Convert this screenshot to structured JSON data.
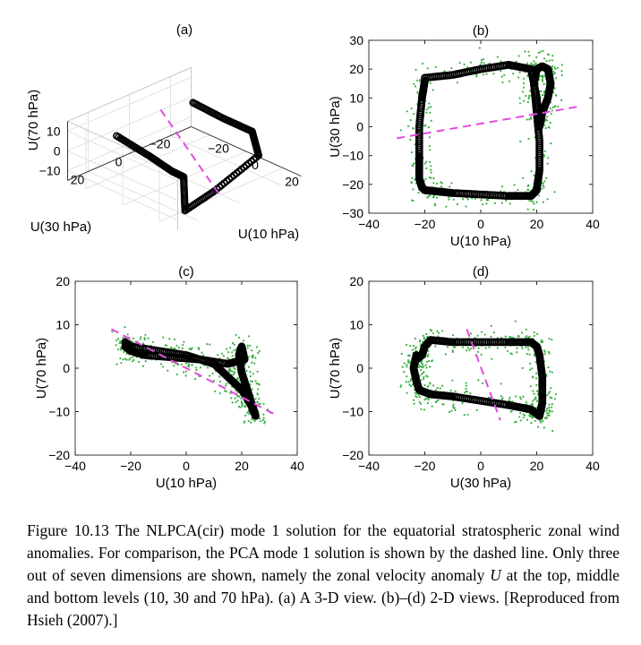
{
  "chart_data": [
    {
      "panel": "(a)",
      "type": "scatter",
      "projection": "3d",
      "xlabel": "U(10 hPa)",
      "ylabel": "U(30 hPa)",
      "zlabel": "U(70 hPa)",
      "xticks": [
        "−20",
        "0",
        "20"
      ],
      "yticks": [
        "−20",
        "0",
        "20"
      ],
      "zticks": [
        "−10",
        "0",
        "10"
      ],
      "xlim": [
        -30,
        30
      ],
      "ylim": [
        -30,
        30
      ],
      "zlim": [
        -15,
        15
      ],
      "grid": true,
      "series": [
        {
          "kind": "curve",
          "x": [
            -20,
            -5,
            10,
            18,
            22,
            25,
            22,
            18,
            0,
            -20
          ],
          "y": [
            -22,
            -23,
            -24,
            -20,
            5,
            22,
            20,
            22,
            17,
            16
          ],
          "z": [
            5,
            3,
            2,
            -5,
            -10,
            -11,
            4,
            6,
            4,
            6
          ]
        },
        {
          "kind": "dashed",
          "x": [
            -22,
            26
          ],
          "y": [
            -8,
            6
          ],
          "z": [
            7,
            -10
          ]
        }
      ]
    },
    {
      "panel": "(b)",
      "type": "scatter",
      "xlabel": "U(10 hPa)",
      "ylabel": "U(30 hPa)",
      "xlim": [
        -40,
        40
      ],
      "ylim": [
        -30,
        30
      ],
      "xticks": [
        "−40",
        "−20",
        "0",
        "20",
        "40"
      ],
      "yticks": [
        "−30",
        "−20",
        "−10",
        "0",
        "10",
        "20",
        "30"
      ],
      "series": [
        {
          "kind": "curve",
          "x": [
            -20,
            -21,
            -22,
            -22,
            -22,
            -21,
            -20,
            -15,
            -10,
            0,
            10,
            18,
            20,
            21,
            21,
            20,
            19,
            20,
            22,
            24,
            25,
            24,
            22,
            21,
            20,
            18,
            10,
            0,
            -10,
            -20
          ],
          "y": [
            16,
            10,
            0,
            -10,
            -18,
            -21,
            -22,
            -22.5,
            -23,
            -23.5,
            -24,
            -24,
            -22,
            -15,
            -5,
            5,
            15,
            20,
            21,
            20,
            15,
            10,
            5,
            0,
            10,
            20,
            21.5,
            20,
            18,
            17
          ]
        },
        {
          "kind": "dashed",
          "x": [
            -30,
            35
          ],
          "y": [
            -4,
            7
          ]
        }
      ]
    },
    {
      "panel": "(c)",
      "type": "scatter",
      "xlabel": "U(10 hPa)",
      "ylabel": "U(70 hPa)",
      "xlim": [
        -40,
        40
      ],
      "ylim": [
        -20,
        20
      ],
      "xticks": [
        "−40",
        "−20",
        "0",
        "20",
        "40"
      ],
      "yticks": [
        "−20",
        "−10",
        "0",
        "10",
        "20"
      ],
      "series": [
        {
          "kind": "curve",
          "x": [
            -22,
            -20,
            -10,
            0,
            10,
            15,
            20,
            23,
            25,
            24,
            22,
            20,
            19,
            20,
            21,
            15,
            5,
            -5,
            -15,
            -20,
            -22
          ],
          "y": [
            6,
            5,
            4,
            3,
            1,
            -2,
            -5,
            -8,
            -11,
            -9,
            -5,
            -1,
            3,
            5,
            2,
            1,
            2,
            2.5,
            3,
            4,
            5
          ]
        },
        {
          "kind": "dashed",
          "x": [
            -27,
            33
          ],
          "y": [
            9,
            -11
          ]
        }
      ]
    },
    {
      "panel": "(d)",
      "type": "scatter",
      "xlabel": "U(30 hPa)",
      "ylabel": "U(70 hPa)",
      "xlim": [
        -40,
        40
      ],
      "ylim": [
        -20,
        20
      ],
      "xticks": [
        "−40",
        "−20",
        "0",
        "20",
        "40"
      ],
      "yticks": [
        "−20",
        "−10",
        "0",
        "10",
        "20"
      ],
      "series": [
        {
          "kind": "curve",
          "x": [
            -23,
            -24,
            -23,
            -22,
            -18,
            -10,
            0,
            10,
            18,
            20,
            21,
            22,
            22,
            21,
            20,
            18,
            10,
            0,
            -10,
            -18,
            -20,
            -21,
            -23
          ],
          "y": [
            3,
            0,
            -3,
            -5,
            -6,
            -6.5,
            -7.5,
            -8.5,
            -9.5,
            -10.5,
            -11,
            -8,
            -2,
            3,
            5,
            6,
            6,
            6,
            6,
            6.5,
            5,
            3,
            2
          ]
        },
        {
          "kind": "dashed",
          "x": [
            -5,
            7
          ],
          "y": [
            9,
            -12
          ]
        }
      ]
    }
  ],
  "caption": {
    "figure_label": "Figure 10.13",
    "text_1": "The NLPCA(cir) mode 1 solution for the equatorial stratospheric zonal wind anomalies. For comparison, the PCA mode 1 solution is shown by the dashed line. Only three out of seven dimensions are shown, namely the zonal velocity anomaly ",
    "variable": "U",
    "text_2": " at the top, middle and bottom levels (10, 30 and 70 hPa). (a) A 3-D view. (b)–(d) 2-D views. [Reproduced from Hsieh (2007).]"
  },
  "colors": {
    "curve": "#000000",
    "dashed": "#e24ae0",
    "scatter": "#3cb043",
    "axis": "#262626",
    "grid": "#dcdcdc"
  }
}
